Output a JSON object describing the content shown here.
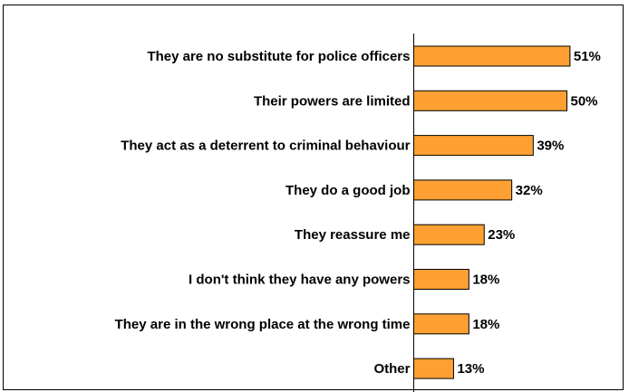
{
  "chart_data": {
    "type": "bar",
    "orientation": "horizontal",
    "categories": [
      "They are no substitute for police officers",
      "Their powers are limited",
      "They act as a deterrent to criminal behaviour",
      "They do a good job",
      "They reassure me",
      "I don't think they have any powers",
      "They are in the wrong place at the wrong time",
      "Other"
    ],
    "values": [
      51,
      50,
      39,
      32,
      23,
      18,
      18,
      13
    ],
    "value_labels": [
      "51%",
      "50%",
      "39%",
      "32%",
      "23%",
      "18%",
      "18%",
      "13%"
    ],
    "xlim": [
      0,
      100
    ],
    "unit": "%",
    "bar_color": "#FFA033",
    "grid": false,
    "legend": "none"
  }
}
